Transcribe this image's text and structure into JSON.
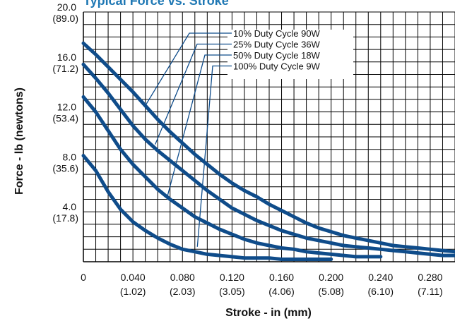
{
  "chart_data": {
    "type": "line",
    "title": "Typical Force vs. Stroke",
    "title_color": "#1f78b4",
    "xlabel": "Stroke - in (mm)",
    "ylabel": "Force - lb (newtons)",
    "xlim": [
      0,
      0.3
    ],
    "ylim": [
      0,
      20
    ],
    "x_grid_step": 0.01,
    "y_grid_step": 1,
    "grid": true,
    "line_color": "#0f4c8a",
    "x_ticks": [
      {
        "value": 0,
        "label": "0",
        "sub": ""
      },
      {
        "value": 0.04,
        "label": "0.040",
        "sub": "(1.02)"
      },
      {
        "value": 0.08,
        "label": "0.080",
        "sub": "(2.03)"
      },
      {
        "value": 0.12,
        "label": "0.120",
        "sub": "(3.05)"
      },
      {
        "value": 0.16,
        "label": "0.160",
        "sub": "(4.06)"
      },
      {
        "value": 0.2,
        "label": "0.200",
        "sub": "(5.08)"
      },
      {
        "value": 0.24,
        "label": "0.240",
        "sub": "(6.10)"
      },
      {
        "value": 0.28,
        "label": "0.280",
        "sub": "(7.11)"
      }
    ],
    "y_ticks": [
      {
        "value": 20,
        "label": "20.0",
        "sub": "(89.0)"
      },
      {
        "value": 16,
        "label": "16.0",
        "sub": "(71.2)"
      },
      {
        "value": 12,
        "label": "12.0",
        "sub": "(53.4)"
      },
      {
        "value": 8,
        "label": "8.0",
        "sub": "(35.6)"
      },
      {
        "value": 4,
        "label": "4.0",
        "sub": "(17.8)"
      }
    ],
    "series": [
      {
        "name": "10% Duty Cycle 90W",
        "x": [
          0,
          0.01,
          0.02,
          0.03,
          0.04,
          0.05,
          0.06,
          0.07,
          0.08,
          0.09,
          0.1,
          0.11,
          0.12,
          0.13,
          0.14,
          0.15,
          0.16,
          0.17,
          0.18,
          0.19,
          0.2,
          0.21,
          0.22,
          0.23,
          0.24,
          0.25,
          0.26,
          0.27,
          0.28,
          0.29,
          0.3
        ],
        "y": [
          17.5,
          16.6,
          15.6,
          14.6,
          13.6,
          12.5,
          11.4,
          10.4,
          9.5,
          8.6,
          7.8,
          7.0,
          6.3,
          5.7,
          5.2,
          4.6,
          4.1,
          3.6,
          3.1,
          2.7,
          2.4,
          2.1,
          1.9,
          1.7,
          1.5,
          1.3,
          1.2,
          1.1,
          1.0,
          0.9,
          0.8
        ],
        "leader_point": [
          0.05,
          12.5
        ]
      },
      {
        "name": "25% Duty Cycle 36W",
        "x": [
          0,
          0.01,
          0.02,
          0.03,
          0.04,
          0.05,
          0.06,
          0.07,
          0.08,
          0.09,
          0.1,
          0.11,
          0.12,
          0.13,
          0.14,
          0.15,
          0.16,
          0.17,
          0.18,
          0.19,
          0.2,
          0.21,
          0.22,
          0.23,
          0.24,
          0.25,
          0.26,
          0.27,
          0.28,
          0.29,
          0.3
        ],
        "y": [
          15.8,
          14.7,
          13.5,
          12.2,
          10.9,
          9.8,
          8.9,
          8.1,
          7.3,
          6.5,
          5.7,
          5.0,
          4.3,
          3.8,
          3.3,
          2.9,
          2.5,
          2.2,
          1.9,
          1.7,
          1.5,
          1.3,
          1.2,
          1.1,
          1.0,
          0.9,
          0.8,
          0.7,
          0.6,
          0.5,
          0.5
        ],
        "leader_point": [
          0.058,
          9.4
        ]
      },
      {
        "name": "50% Duty Cycle 18W",
        "x": [
          0,
          0.01,
          0.02,
          0.03,
          0.04,
          0.05,
          0.06,
          0.07,
          0.08,
          0.09,
          0.1,
          0.11,
          0.12,
          0.13,
          0.14,
          0.15,
          0.16,
          0.17,
          0.18,
          0.19,
          0.2,
          0.21,
          0.22,
          0.23,
          0.24
        ],
        "y": [
          13.2,
          12.0,
          10.5,
          9.0,
          7.8,
          6.8,
          5.8,
          5.0,
          4.3,
          3.6,
          3.1,
          2.6,
          2.2,
          1.8,
          1.5,
          1.3,
          1.1,
          1.0,
          0.8,
          0.7,
          0.6,
          0.5,
          0.4,
          0.4,
          0.4
        ],
        "leader_point": [
          0.068,
          5.3
        ]
      },
      {
        "name": "100% Duty Cycle 9W",
        "x": [
          0,
          0.01,
          0.02,
          0.03,
          0.04,
          0.05,
          0.06,
          0.07,
          0.08,
          0.09,
          0.1,
          0.11,
          0.12,
          0.13,
          0.14,
          0.15,
          0.16,
          0.17,
          0.18,
          0.19,
          0.2
        ],
        "y": [
          8.5,
          7.3,
          5.6,
          4.2,
          3.2,
          2.5,
          1.9,
          1.4,
          1.0,
          0.8,
          0.6,
          0.5,
          0.4,
          0.3,
          0.3,
          0.3,
          0.2,
          0.2,
          0.2,
          0.2,
          0.2
        ],
        "leader_point": [
          0.092,
          1.2
        ]
      }
    ]
  }
}
